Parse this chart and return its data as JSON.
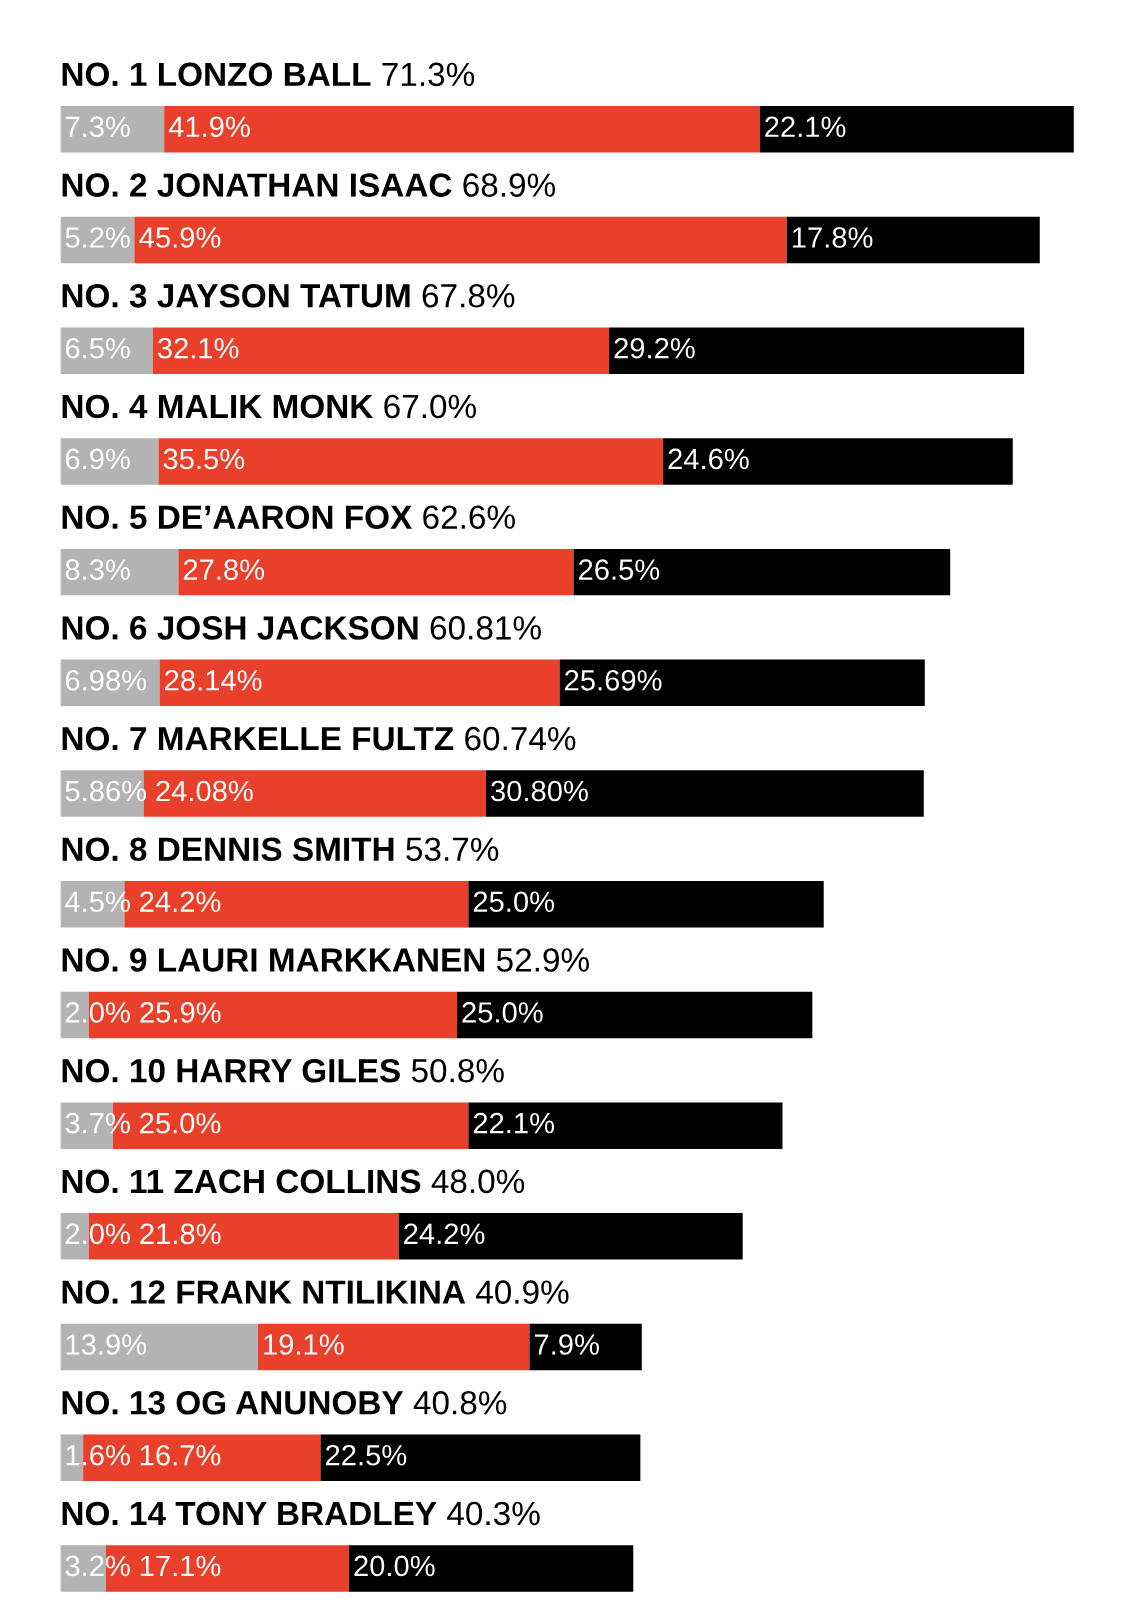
{
  "chart_data": {
    "type": "bar",
    "orientation": "horizontal",
    "stacked": true,
    "categories": [
      "NO. 1 LONZO BALL",
      "NO. 2 JONATHAN ISAAC",
      "NO. 3 JAYSON TATUM",
      "NO. 4 MALIK MONK",
      "NO. 5 DE’AARON FOX",
      "NO. 6 JOSH JACKSON",
      "NO. 7 MARKELLE FULTZ",
      "NO. 8 DENNIS SMITH",
      "NO. 9 LAURI MARKKANEN",
      "NO. 10 HARRY GILES",
      "NO. 11 ZACH COLLINS",
      "NO. 12 FRANK NTILIKINA",
      "NO. 13 OG ANUNOBY",
      "NO. 14 TONY BRADLEY"
    ],
    "series": [
      {
        "color": "#b3b3b3",
        "values": [
          7.3,
          5.2,
          6.5,
          6.9,
          8.3,
          6.98,
          5.86,
          4.5,
          2.0,
          3.7,
          2.0,
          13.9,
          1.6,
          3.2
        ],
        "value_labels": [
          "7.3%",
          "5.2%",
          "6.5%",
          "6.9%",
          "8.3%",
          "6.98%",
          "5.86%",
          "4.5%",
          "2.0%",
          "3.7%",
          "2.0%",
          "13.9%",
          "1.6%",
          "3.2%"
        ]
      },
      {
        "color": "#e8402a",
        "values": [
          41.9,
          45.9,
          32.1,
          35.5,
          27.8,
          28.14,
          24.08,
          24.2,
          25.9,
          25.0,
          21.8,
          19.1,
          16.7,
          17.1
        ],
        "value_labels": [
          "41.9%",
          "45.9%",
          "32.1%",
          "35.5%",
          "27.8%",
          "28.14%",
          "24.08%",
          "24.2%",
          "25.9%",
          "25.0%",
          "21.8%",
          "19.1%",
          "16.7%",
          "17.1%"
        ]
      },
      {
        "color": "#000000",
        "values": [
          22.1,
          17.8,
          29.2,
          24.6,
          26.5,
          25.69,
          30.8,
          25.0,
          25.0,
          22.1,
          24.2,
          7.9,
          22.5,
          20.0
        ],
        "value_labels": [
          "22.1%",
          "17.8%",
          "29.2%",
          "24.6%",
          "26.5%",
          "25.69%",
          "30.80%",
          "25.0%",
          "25.0%",
          "22.1%",
          "24.2%",
          "7.9%",
          "22.5%",
          "20.0%"
        ]
      }
    ],
    "totals": [
      "71.3%",
      "68.9%",
      "67.8%",
      "67.0%",
      "62.6%",
      "60.81%",
      "60.74%",
      "53.7%",
      "52.9%",
      "50.8%",
      "48.0%",
      "40.9%",
      "40.8%",
      "40.3%"
    ],
    "tick_labels": false,
    "grid": false,
    "legend": false
  }
}
